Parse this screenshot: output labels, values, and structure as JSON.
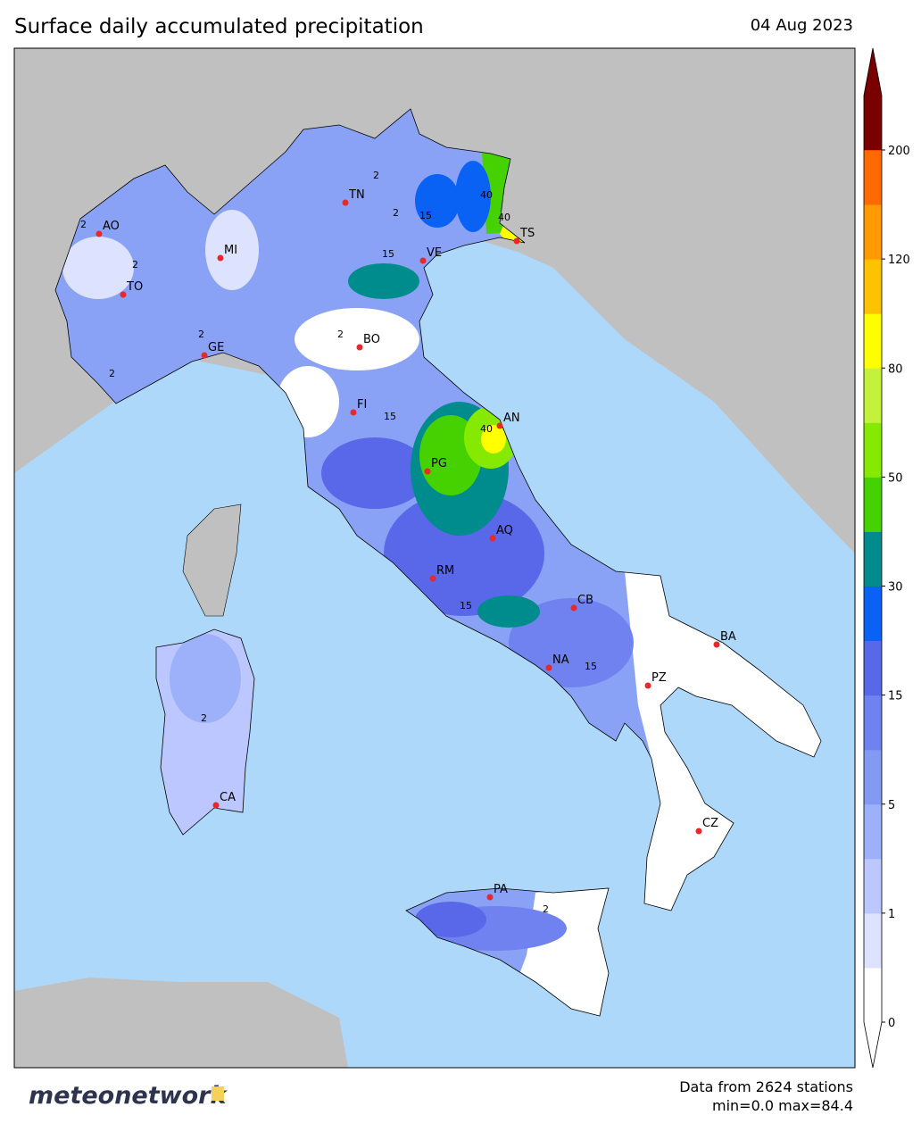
{
  "header": {
    "title": "Surface daily accumulated precipitation",
    "date": "04 Aug 2023"
  },
  "map": {
    "cities": [
      "AO",
      "MI",
      "TO",
      "GE",
      "TN",
      "VE",
      "TS",
      "BO",
      "FI",
      "AN",
      "PG",
      "AQ",
      "RM",
      "CB",
      "BA",
      "NA",
      "PZ",
      "CA",
      "CZ",
      "PA"
    ],
    "contour_labels": [
      "2",
      "2",
      "2",
      "2",
      "2",
      "2",
      "15",
      "15",
      "15",
      "15",
      "15",
      "40",
      "40",
      "40",
      "2",
      "2",
      "2"
    ]
  },
  "colorbar": {
    "ticks": [
      0,
      1,
      5,
      15,
      30,
      50,
      80,
      120,
      200
    ],
    "colors": [
      "#ffffff",
      "#dde3ff",
      "#bcc7ff",
      "#9db1fa",
      "#8399f3",
      "#6f82ef",
      "#5868e8",
      "#0a62f5",
      "#008c8c",
      "#46d200",
      "#86ea00",
      "#c4f23c",
      "#ffff00",
      "#ffc200",
      "#ff9a00",
      "#ff6a00",
      "#ff1a00"
    ],
    "over_color": "#7a0000"
  },
  "footer": {
    "logo": "meteonetwork",
    "stations": "Data from 2624 stations",
    "range": "min=0.0 max=84.4"
  }
}
